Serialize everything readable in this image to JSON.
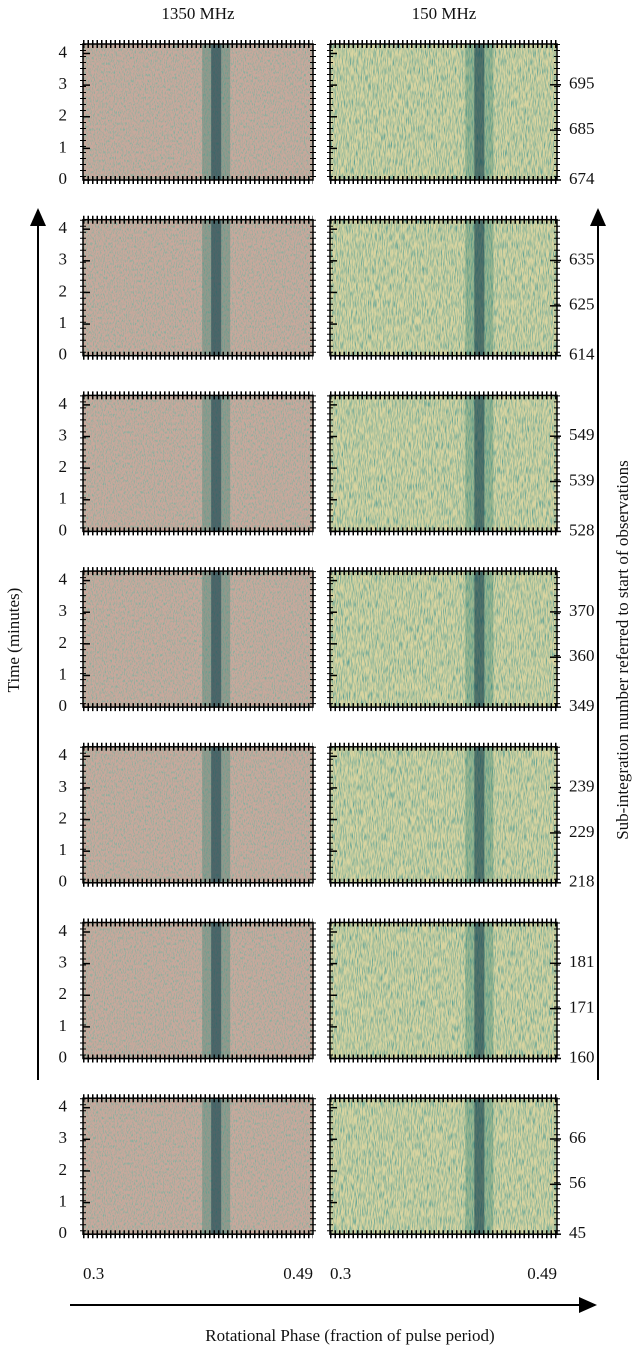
{
  "columns": [
    "1350 MHz",
    "150 MHz"
  ],
  "y_label": "Time (minutes)",
  "y2_label": "Sub-integration number referred to start of observations",
  "x_label": "Rotational Phase (fraction of pulse period)",
  "xlim": [
    0.3,
    0.49
  ],
  "xticks": [
    0.3,
    0.49
  ],
  "ylim": [
    0,
    4.3
  ],
  "time_ticks": [
    0,
    1,
    2,
    3,
    4
  ],
  "rows": [
    {
      "y2lim": [
        674,
        704
      ],
      "subint_ticks": [
        674,
        685,
        695
      ]
    },
    {
      "y2lim": [
        614,
        644
      ],
      "subint_ticks": [
        614,
        625,
        635
      ]
    },
    {
      "y2lim": [
        528,
        558
      ],
      "subint_ticks": [
        528,
        539,
        549
      ]
    },
    {
      "y2lim": [
        349,
        379
      ],
      "subint_ticks": [
        349,
        360,
        370
      ]
    },
    {
      "y2lim": [
        218,
        248
      ],
      "subint_ticks": [
        218,
        229,
        239
      ]
    },
    {
      "y2lim": [
        160,
        190
      ],
      "subint_ticks": [
        160,
        171,
        181
      ]
    },
    {
      "y2lim": [
        45,
        75
      ],
      "subint_ticks": [
        45,
        56,
        66
      ]
    }
  ]
}
